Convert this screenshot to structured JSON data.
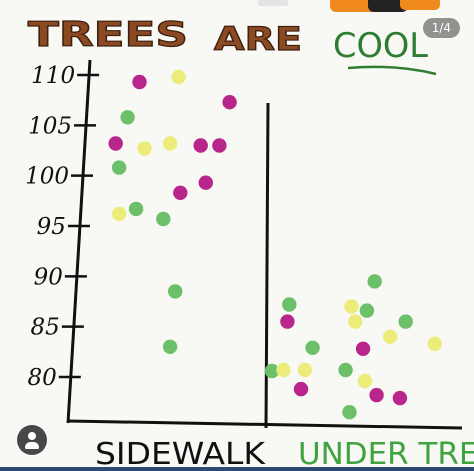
{
  "chart_data": {
    "type": "scatter",
    "title": "TREES ARE COOL",
    "title_parts": {
      "trees": "TREES",
      "are": "ARE",
      "cool": "COOL"
    },
    "yticks": [
      110,
      105,
      100,
      95,
      90,
      85,
      80
    ],
    "ylim": [
      78,
      111
    ],
    "categories": [
      "SIDEWALK",
      "UNDER TREE"
    ],
    "colors": {
      "magenta": "#b8268c",
      "yellow": "#ecec7a",
      "green": "#6cc06a",
      "title_brown": "#8b4a22",
      "title_green": "#2e7d32",
      "under_tree_label": "#3fa33f"
    },
    "points": [
      {
        "group": "SIDEWALK",
        "x": 0.35,
        "y": 109.3,
        "color": "magenta"
      },
      {
        "group": "SIDEWALK",
        "x": 0.58,
        "y": 109.8,
        "color": "yellow"
      },
      {
        "group": "SIDEWALK",
        "x": 0.88,
        "y": 107.3,
        "color": "magenta"
      },
      {
        "group": "SIDEWALK",
        "x": 0.28,
        "y": 105.8,
        "color": "green"
      },
      {
        "group": "SIDEWALK",
        "x": 0.21,
        "y": 103.2,
        "color": "magenta"
      },
      {
        "group": "SIDEWALK",
        "x": 0.38,
        "y": 102.7,
        "color": "yellow"
      },
      {
        "group": "SIDEWALK",
        "x": 0.53,
        "y": 103.2,
        "color": "yellow"
      },
      {
        "group": "SIDEWALK",
        "x": 0.71,
        "y": 103.0,
        "color": "magenta"
      },
      {
        "group": "SIDEWALK",
        "x": 0.82,
        "y": 103.0,
        "color": "magenta"
      },
      {
        "group": "SIDEWALK",
        "x": 0.23,
        "y": 100.8,
        "color": "green"
      },
      {
        "group": "SIDEWALK",
        "x": 0.74,
        "y": 99.3,
        "color": "magenta"
      },
      {
        "group": "SIDEWALK",
        "x": 0.59,
        "y": 98.3,
        "color": "magenta"
      },
      {
        "group": "SIDEWALK",
        "x": 0.33,
        "y": 96.7,
        "color": "green"
      },
      {
        "group": "SIDEWALK",
        "x": 0.23,
        "y": 96.2,
        "color": "yellow"
      },
      {
        "group": "SIDEWALK",
        "x": 0.49,
        "y": 95.7,
        "color": "green"
      },
      {
        "group": "SIDEWALK",
        "x": 0.56,
        "y": 88.5,
        "color": "green"
      },
      {
        "group": "SIDEWALK",
        "x": 0.53,
        "y": 83.0,
        "color": "green"
      },
      {
        "group": "UNDER TREE",
        "x": 0.55,
        "y": 89.5,
        "color": "green"
      },
      {
        "group": "UNDER TREE",
        "x": 0.11,
        "y": 87.2,
        "color": "green"
      },
      {
        "group": "UNDER TREE",
        "x": 0.43,
        "y": 87.0,
        "color": "yellow"
      },
      {
        "group": "UNDER TREE",
        "x": 0.51,
        "y": 86.6,
        "color": "green"
      },
      {
        "group": "UNDER TREE",
        "x": 0.1,
        "y": 85.5,
        "color": "magenta"
      },
      {
        "group": "UNDER TREE",
        "x": 0.45,
        "y": 85.5,
        "color": "yellow"
      },
      {
        "group": "UNDER TREE",
        "x": 0.71,
        "y": 85.5,
        "color": "green"
      },
      {
        "group": "UNDER TREE",
        "x": 0.63,
        "y": 84.0,
        "color": "yellow"
      },
      {
        "group": "UNDER TREE",
        "x": 0.86,
        "y": 83.3,
        "color": "yellow"
      },
      {
        "group": "UNDER TREE",
        "x": 0.23,
        "y": 82.9,
        "color": "green"
      },
      {
        "group": "UNDER TREE",
        "x": 0.49,
        "y": 82.8,
        "color": "magenta"
      },
      {
        "group": "UNDER TREE",
        "x": 0.02,
        "y": 80.6,
        "color": "green"
      },
      {
        "group": "UNDER TREE",
        "x": 0.08,
        "y": 80.7,
        "color": "yellow"
      },
      {
        "group": "UNDER TREE",
        "x": 0.19,
        "y": 80.7,
        "color": "yellow"
      },
      {
        "group": "UNDER TREE",
        "x": 0.4,
        "y": 80.7,
        "color": "green"
      },
      {
        "group": "UNDER TREE",
        "x": 0.5,
        "y": 79.6,
        "color": "yellow"
      },
      {
        "group": "UNDER TREE",
        "x": 0.17,
        "y": 78.8,
        "color": "magenta"
      },
      {
        "group": "UNDER TREE",
        "x": 0.56,
        "y": 78.2,
        "color": "magenta"
      },
      {
        "group": "UNDER TREE",
        "x": 0.68,
        "y": 77.9,
        "color": "magenta"
      },
      {
        "group": "UNDER TREE",
        "x": 0.42,
        "y": 76.5,
        "color": "green"
      }
    ]
  },
  "viewer": {
    "page_counter": "1/4",
    "avatar_icon": "user-avatar-icon"
  }
}
